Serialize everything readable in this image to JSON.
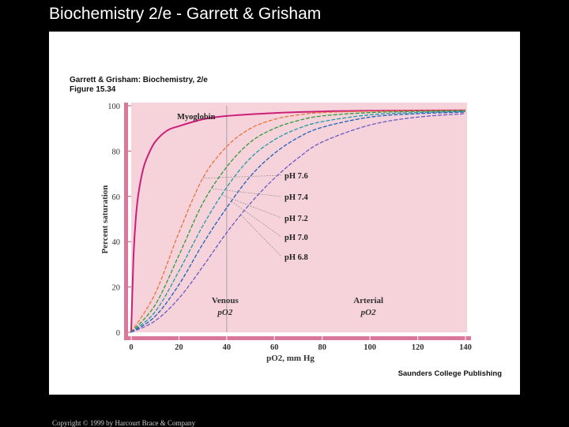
{
  "slide": {
    "title": "Biochemistry 2/e - Garrett & Grisham",
    "copyright": "Copyright © 1999 by Harcourt Brace & Company"
  },
  "figure": {
    "header_line1": "Garrett & Grisham: Biochemistry, 2/e",
    "header_line2": "Figure 15.34",
    "publisher": "Saunders College Publishing"
  },
  "chart_data": {
    "type": "line",
    "xlabel": "pO2, mm Hg",
    "ylabel": "Percent saturation",
    "xlim": [
      0,
      140
    ],
    "ylim": [
      0,
      100
    ],
    "xticks": [
      0,
      20,
      40,
      60,
      80,
      100,
      120,
      140
    ],
    "yticks": [
      0,
      20,
      40,
      60,
      80,
      100
    ],
    "grid": false,
    "background_color": "#f6d3db",
    "series": [
      {
        "name": "Myoglobin",
        "color": "#cc1f7a",
        "x": [
          0,
          1,
          2,
          3,
          5,
          7,
          10,
          15,
          20,
          30,
          40,
          60,
          80,
          100,
          140
        ],
        "y": [
          0,
          34,
          51,
          61,
          72,
          78,
          84,
          89,
          91,
          94,
          95.5,
          96.8,
          97.5,
          97.8,
          98
        ]
      },
      {
        "name": "pH 7.6",
        "color": "#e8743b",
        "x": [
          0,
          10,
          20,
          30,
          40,
          50,
          60,
          70,
          80,
          100,
          120,
          140
        ],
        "y": [
          0,
          17,
          44,
          68,
          82,
          90,
          94,
          96,
          97,
          97.6,
          97.8,
          98
        ]
      },
      {
        "name": "pH 7.4",
        "color": "#2e9a3c",
        "x": [
          0,
          10,
          20,
          30,
          40,
          50,
          60,
          70,
          80,
          100,
          120,
          140
        ],
        "y": [
          0,
          12,
          34,
          57,
          73,
          84,
          90,
          93.5,
          95.5,
          97,
          97.5,
          97.8
        ]
      },
      {
        "name": "pH 7.2",
        "color": "#1f9aa3",
        "x": [
          0,
          10,
          20,
          30,
          40,
          50,
          60,
          70,
          80,
          100,
          120,
          140
        ],
        "y": [
          0,
          9,
          27,
          47,
          64,
          77,
          85,
          90,
          93,
          96,
          97,
          97.5
        ]
      },
      {
        "name": "pH 7.0",
        "color": "#1f5fb8",
        "x": [
          0,
          10,
          20,
          30,
          40,
          50,
          60,
          70,
          80,
          100,
          120,
          140
        ],
        "y": [
          0,
          7,
          21,
          39,
          55,
          69,
          79,
          86,
          90.5,
          95,
          96.5,
          97.2
        ]
      },
      {
        "name": "pH 6.8",
        "color": "#6a5bc4",
        "x": [
          0,
          10,
          20,
          30,
          40,
          50,
          60,
          70,
          80,
          100,
          120,
          140
        ],
        "y": [
          0,
          5,
          15,
          29,
          44,
          57,
          68,
          77,
          84,
          91.5,
          95,
          96.5
        ]
      }
    ],
    "annotations": [
      {
        "id": "venous",
        "line1": "Venous",
        "line2": "pO2",
        "x": 40
      },
      {
        "id": "arterial",
        "line1": "Arterial",
        "line2": "pO2",
        "x": 100
      }
    ]
  }
}
